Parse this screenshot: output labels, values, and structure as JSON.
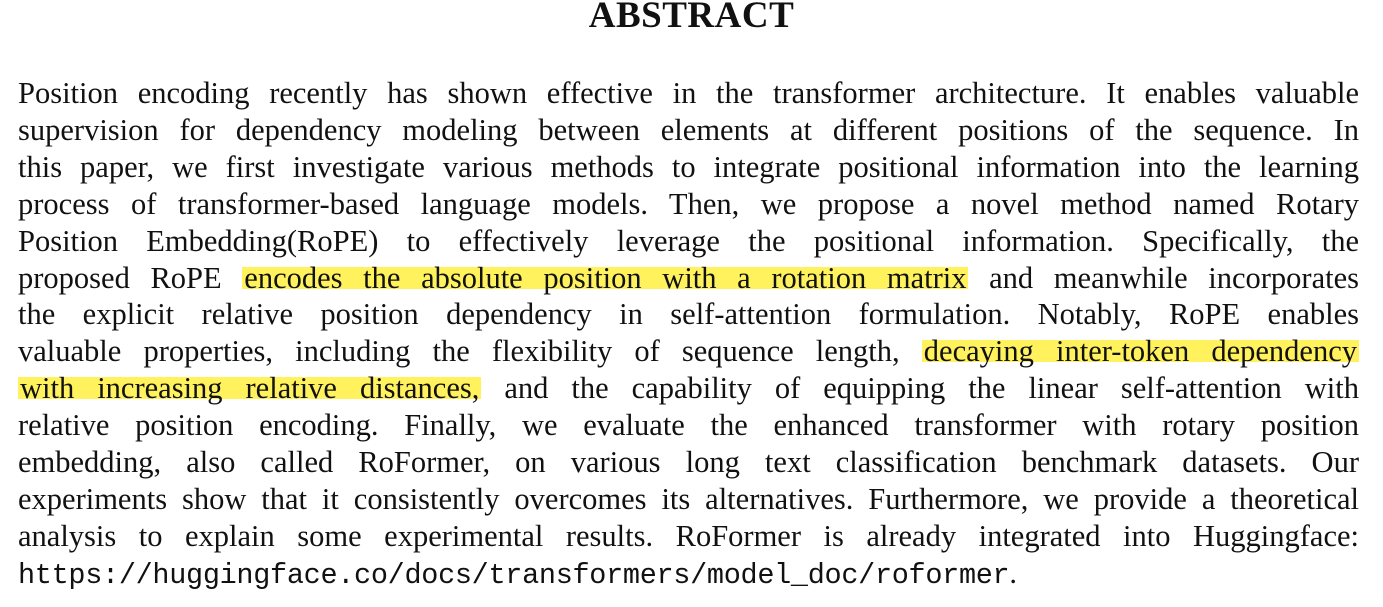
{
  "heading": "ABSTRACT",
  "lines": [
    "Position encoding recently has shown effective in the transformer architecture. It enables valuable",
    "supervision for dependency modeling between elements at different positions of the sequence. In",
    "this paper, we first investigate various methods to integrate positional information into the learning",
    "process of transformer-based language models. Then, we propose a novel method named Rotary",
    "Position Embedding(RoPE) to effectively leverage the positional information. Specifically, the",
    {
      "pre": "proposed RoPE ",
      "hl": "encodes the absolute position with a rotation matrix",
      "post": " and meanwhile incorporates"
    },
    "the explicit relative position dependency in self-attention formulation. Notably, RoPE enables",
    {
      "pre": "valuable properties, including the flexibility of sequence length, ",
      "hl": "decaying inter-token dependency",
      "post": ""
    },
    {
      "pre": "",
      "hl": "with increasing relative distances,",
      "post": " and the capability of equipping the linear self-attention with"
    },
    "relative position encoding. Finally, we evaluate the enhanced transformer with rotary position",
    "embedding, also called RoFormer, on various long text classification benchmark datasets. Our",
    "experiments show that it consistently overcomes its alternatives. Furthermore, we provide a theoretical",
    "analysis to explain some experimental results. RoFormer is already integrated into Huggingface:"
  ],
  "url_line": "https://huggingface.co/docs/transformers/model_doc/roformer",
  "url_trailing": ".",
  "highlight_color": "#fff25c"
}
